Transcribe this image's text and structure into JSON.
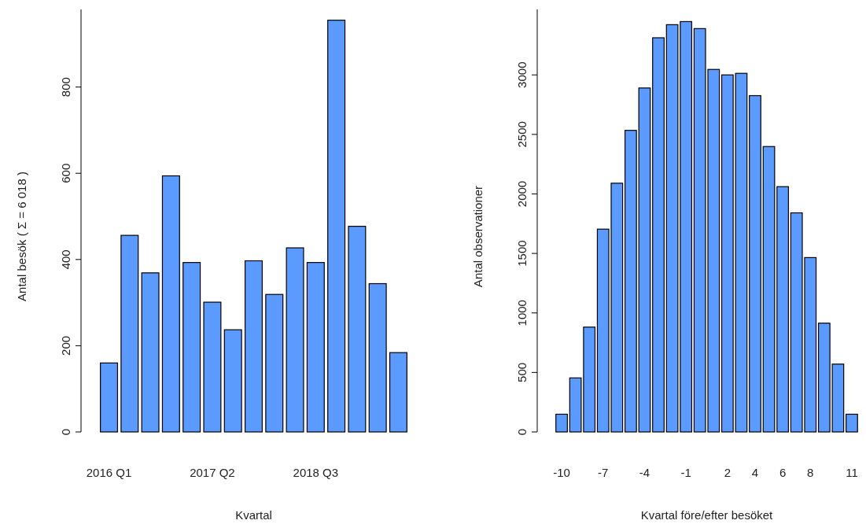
{
  "chart_data": [
    {
      "type": "bar",
      "xlabel": "Kvartal",
      "ylabel": "Antal besök ( Σ = 6 018 )",
      "categories": [
        "2016 Q1",
        null,
        null,
        null,
        null,
        "2017 Q2",
        null,
        null,
        null,
        null,
        "2018 Q3",
        null,
        null,
        null,
        null
      ],
      "values": [
        160,
        456,
        369,
        594,
        393,
        301,
        237,
        397,
        319,
        427,
        393,
        955,
        477,
        344,
        184
      ],
      "color": "#5b9bff",
      "ylim": [
        0,
        980
      ],
      "yticks": [
        0,
        200,
        400,
        600,
        800
      ],
      "grid": false
    },
    {
      "type": "bar",
      "xlabel": "Kvartal före/efter besöket",
      "ylabel": "Antal observationer",
      "categories": [
        "-10",
        null,
        null,
        "-7",
        null,
        null,
        "-4",
        null,
        null,
        "-1",
        null,
        null,
        "2",
        null,
        "4",
        null,
        "6",
        null,
        "8",
        null,
        null,
        "11"
      ],
      "values": [
        149,
        454,
        881,
        1704,
        2090,
        2534,
        2890,
        3312,
        3422,
        3448,
        3389,
        3046,
        3000,
        3013,
        2826,
        2398,
        2061,
        1841,
        1465,
        914,
        570,
        149
      ],
      "color": "#5b9bff",
      "ylim": [
        0,
        3550
      ],
      "yticks": [
        0,
        500,
        1000,
        1500,
        2000,
        2500,
        3000
      ],
      "grid": false
    }
  ]
}
